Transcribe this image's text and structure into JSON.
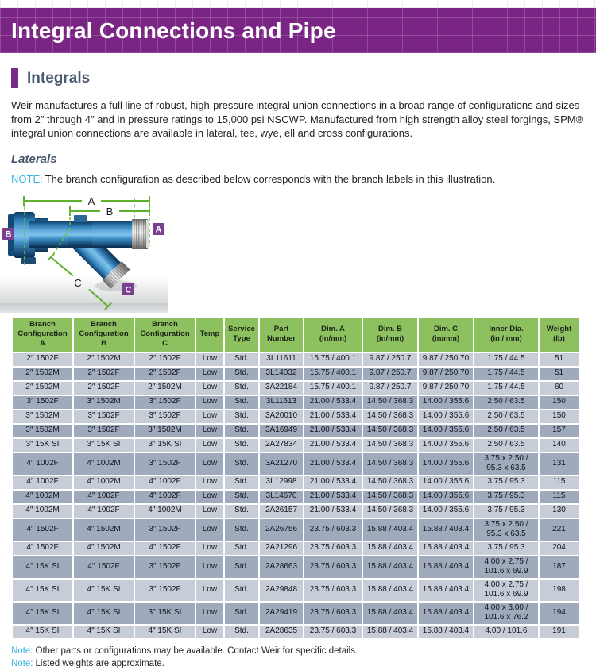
{
  "banner": {
    "title": "Integral Connections and Pipe"
  },
  "section": {
    "heading": "Integrals"
  },
  "intro": "Weir manufactures a full line of robust, high-pressure integral union connections in a broad range of configurations and sizes from 2″ through 4″ and in pressure ratings to 15,000 psi NSCWP. Manufactured from high strength alloy steel forgings, SPM® integral union connections are available in lateral, tee, wye, ell and cross configurations.",
  "laterals": {
    "heading": "Laterals",
    "note_label": "NOTE:",
    "note_text": "The branch configuration as described below corresponds with the branch labels in this illustration."
  },
  "illustration": {
    "dim_labels": [
      "A",
      "B",
      "C"
    ],
    "port_labels": [
      "A",
      "B",
      "C"
    ]
  },
  "table": {
    "headers": [
      "Branch\nConfiguration\nA",
      "Branch\nConfiguration\nB",
      "Branch\nConfiguration\nC",
      "Temp",
      "Service\nType",
      "Part\nNumber",
      "Dim. A\n(in/mm)",
      "Dim. B\n(in/mm)",
      "Dim. C\n(in/mm)",
      "Inner Dia.\n(in / mm)",
      "Weight\n(lb)"
    ],
    "rows": [
      [
        "2″ 1502F",
        "2″ 1502M",
        "2″ 1502F",
        "Low",
        "Std.",
        "3L11611",
        "15.75 / 400.1",
        "9.87 / 250.7",
        "9.87 / 250.70",
        "1.75 / 44.5",
        "51"
      ],
      [
        "2″ 1502M",
        "2″ 1502F",
        "2″ 1502F",
        "Low",
        "Std.",
        "3L14032",
        "15.75 / 400.1",
        "9.87 / 250.7",
        "9.87 / 250.70",
        "1.75 / 44.5",
        "51"
      ],
      [
        "2″ 1502M",
        "2″ 1502F",
        "2″ 1502M",
        "Low",
        "Std.",
        "3A22184",
        "15.75 / 400.1",
        "9.87 / 250.7",
        "9.87 / 250.70",
        "1.75 / 44.5",
        "60"
      ],
      [
        "3″ 1502F",
        "3″ 1502M",
        "3″ 1502F",
        "Low",
        "Std.",
        "3L11613",
        "21.00 / 533.4",
        "14.50 / 368.3",
        "14.00 / 355.6",
        "2.50 / 63.5",
        "150"
      ],
      [
        "3″ 1502M",
        "3″ 1502F",
        "3″ 1502F",
        "Low",
        "Std.",
        "3A20010",
        "21.00 / 533.4",
        "14.50 / 368.3",
        "14.00 / 355.6",
        "2.50 / 63.5",
        "150"
      ],
      [
        "3″ 1502M",
        "3″ 1502F",
        "3″ 1502M",
        "Low",
        "Std.",
        "3A16949",
        "21.00 / 533.4",
        "14.50 / 368.3",
        "14.00 / 355.6",
        "2.50 / 63.5",
        "157"
      ],
      [
        "3″ 15K SI",
        "3″ 15K SI",
        "3″ 15K SI",
        "Low",
        "Std.",
        "2A27834",
        "21.00 / 533.4",
        "14.50 / 368.3",
        "14.00 / 355.6",
        "2.50 / 63.5",
        "140"
      ],
      [
        "4″ 1002F",
        "4″ 1002M",
        "3″ 1502F",
        "Low",
        "Std.",
        "3A21270",
        "21.00 / 533.4",
        "14.50 / 368.3",
        "14.00 / 355.6",
        "3.75 x 2.50 /\n95.3 x 63.5",
        "131"
      ],
      [
        "4″ 1002F",
        "4″ 1002M",
        "4″ 1002F",
        "Low",
        "Std.",
        "3L12998",
        "21.00 / 533.4",
        "14.50 / 368.3",
        "14.00 / 355.6",
        "3.75 / 95.3",
        "115"
      ],
      [
        "4″ 1002M",
        "4″ 1002F",
        "4″ 1002F",
        "Low",
        "Std.",
        "3L14670",
        "21.00 / 533.4",
        "14.50 / 368.3",
        "14.00 / 355.6",
        "3.75 / 95.3",
        "115"
      ],
      [
        "4″ 1002M",
        "4″ 1002F",
        "4″ 1002M",
        "Low",
        "Std.",
        "2A26157",
        "21.00 / 533.4",
        "14.50 / 368.3",
        "14.00 / 355.6",
        "3.75 / 95.3",
        "130"
      ],
      [
        "4″ 1502F",
        "4″ 1502M",
        "3″ 1502F",
        "Low",
        "Std.",
        "2A26756",
        "23.75 / 603.3",
        "15.88 / 403.4",
        "15.88 / 403.4",
        "3.75 x 2.50 /\n95.3 x 63.5",
        "221"
      ],
      [
        "4″ 1502F",
        "4″ 1502M",
        "4″ 1502F",
        "Low",
        "Std.",
        "2A21296",
        "23.75 / 603.3",
        "15.88 / 403.4",
        "15.88 / 403.4",
        "3.75 / 95.3",
        "204"
      ],
      [
        "4″ 15K SI",
        "4″ 1502F",
        "3″ 1502F",
        "Low",
        "Std.",
        "2A28663",
        "23.75 / 603.3",
        "15.88 / 403.4",
        "15.88 / 403.4",
        "4.00 x 2.75 /\n101.6 x 69.9",
        "187"
      ],
      [
        "4″ 15K SI",
        "4″ 15K SI",
        "3″ 1502F",
        "Low",
        "Std.",
        "2A29848",
        "23.75 / 603.3",
        "15.88 / 403.4",
        "15.88 / 403.4",
        "4.00 x 2.75 /\n101.6 x 69.9",
        "198"
      ],
      [
        "4″ 15K SI",
        "4″ 15K SI",
        "3″ 15K SI",
        "Low",
        "Std.",
        "2A29419",
        "23.75 / 603.3",
        "15.88 / 403.4",
        "15.88 / 403.4",
        "4.00 x 3.00 /\n101.6 x 76.2",
        "194"
      ],
      [
        "4″ 15K SI",
        "4″ 15K SI",
        "4″ 15K SI",
        "Low",
        "Std.",
        "2A28635",
        "23.75 / 603.3",
        "15.88 / 403.4",
        "15.88 / 403.4",
        "4.00 / 101.6",
        "191"
      ]
    ]
  },
  "footnotes": [
    {
      "label": "Note:",
      "text": "Other parts or configurations may be available. Contact Weir for specific details."
    },
    {
      "label": "Note:",
      "text": "Listed weights are approximate."
    }
  ],
  "colors": {
    "banner_purple": "#7a2483",
    "header_green": "#8dc05f",
    "row_light": "#c6cdd7",
    "row_dark": "#9fabbc",
    "label_purple": "#7b3f92",
    "note_blue": "#3cb4e5",
    "dimension_green": "#5eb02d",
    "heading_slate": "#4d5c74"
  }
}
